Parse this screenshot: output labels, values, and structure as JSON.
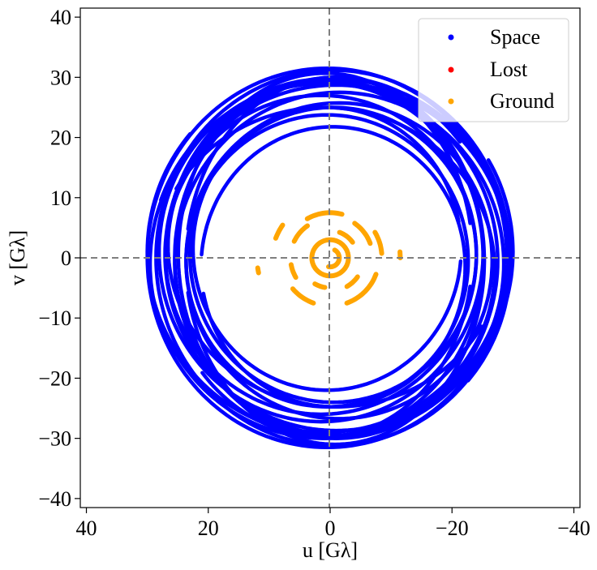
{
  "chart_data": {
    "type": "scatter",
    "title": "",
    "xlabel": "u [Gλ]",
    "ylabel": "v [Gλ]",
    "xlim": [
      41,
      -41
    ],
    "ylim": [
      -41.5,
      41.5
    ],
    "xticks": [
      40,
      20,
      0,
      -20,
      -40
    ],
    "yticks": [
      40,
      30,
      20,
      10,
      0,
      -10,
      -20,
      -30,
      -40
    ],
    "xtick_labels": [
      "40",
      "20",
      "0",
      "−20",
      "−40"
    ],
    "ytick_labels": [
      "40",
      "30",
      "20",
      "10",
      "0",
      "−10",
      "−20",
      "−30",
      "−40"
    ],
    "reference_lines": [
      {
        "axis": "x",
        "value": 0,
        "style": "dashed"
      },
      {
        "axis": "y",
        "value": 0,
        "style": "dashed"
      }
    ],
    "legend": {
      "position": "top-right",
      "entries": [
        {
          "label": "Space",
          "color": "#0000ff"
        },
        {
          "label": "Lost",
          "color": "#ff0000"
        },
        {
          "label": "Ground",
          "color": "#ffa500"
        }
      ]
    },
    "series": [
      {
        "name": "Space",
        "color": "#0000ff",
        "tracks": [
          {
            "cx": 0.5,
            "cy": 0.0,
            "a": 29.5,
            "b": 31.5,
            "t0": 0,
            "t1": 360
          },
          {
            "cx": -1.5,
            "cy": -1.0,
            "a": 27.0,
            "b": 28.5,
            "t0": 0,
            "t1": 360
          },
          {
            "cx": 1.5,
            "cy": 0.5,
            "a": 25.5,
            "b": 26.5,
            "t0": 0,
            "t1": 360
          },
          {
            "cx": -0.5,
            "cy": 0.5,
            "a": 23.5,
            "b": 24.5,
            "t0": 0,
            "t1": 360
          },
          {
            "cx": 1.0,
            "cy": -0.5,
            "a": 28.5,
            "b": 29.5,
            "t0": 20,
            "t1": 340
          },
          {
            "cx": 0.0,
            "cy": 1.0,
            "a": 30.0,
            "b": 30.5,
            "t0": 150,
            "t1": 400
          },
          {
            "cx": -1.0,
            "cy": 0.0,
            "a": 26.5,
            "b": 30.0,
            "t0": 200,
            "t1": 500
          },
          {
            "cx": 1.0,
            "cy": -2.0,
            "a": 28.0,
            "b": 27.0,
            "t0": 30,
            "t1": 330
          },
          {
            "cx": 0.5,
            "cy": 1.5,
            "a": 22.0,
            "b": 23.5,
            "t0": 185,
            "t1": 530
          },
          {
            "cx": -0.8,
            "cy": -0.5,
            "a": 24.5,
            "b": 30.5,
            "t0": 10,
            "t1": 350
          }
        ]
      },
      {
        "name": "Ground",
        "color": "#ffa500",
        "arcs": [
          {
            "r": 7.5,
            "t0": 60,
            "t1": 105
          },
          {
            "r": 8.0,
            "t0": 200,
            "t1": 250
          },
          {
            "r": 8.0,
            "t0": 290,
            "t1": 320
          },
          {
            "r": 8.5,
            "t0": 150,
            "t1": 175
          },
          {
            "r": 9.5,
            "t0": 20,
            "t1": 35
          },
          {
            "r": 6.5,
            "t0": 25,
            "t1": 55
          },
          {
            "r": 7.0,
            "t0": 125,
            "t1": 160
          },
          {
            "r": 5.5,
            "t0": 215,
            "t1": 240
          },
          {
            "r": 6.5,
            "t0": 330,
            "t1": 350
          },
          {
            "r": 4.5,
            "t0": 110,
            "t1": 145
          },
          {
            "r": 5.0,
            "t0": 280,
            "t1": 300
          },
          {
            "r": 3.0,
            "t0": 0,
            "t1": 360
          },
          {
            "r": 1.5,
            "t0": 120,
            "t1": 280
          },
          {
            "r": 11.5,
            "t0": 175,
            "t1": 180
          },
          {
            "r": 12.0,
            "t0": 348,
            "t1": 352
          }
        ]
      },
      {
        "name": "Lost",
        "color": "#ff0000",
        "points": []
      }
    ]
  }
}
